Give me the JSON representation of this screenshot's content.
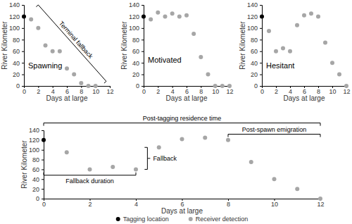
{
  "chart_data": [
    {
      "type": "scatter",
      "title": "Spawning",
      "x_label": "Days at large",
      "y_label": "River Kilometer",
      "xlim": [
        0,
        12
      ],
      "ylim": [
        0,
        140
      ],
      "xticks": [
        0,
        2,
        4,
        6,
        8,
        10,
        12
      ],
      "yticks": [
        0,
        20,
        40,
        60,
        80,
        100,
        120,
        140
      ],
      "series": [
        {
          "color": "#000000",
          "marker": "circle",
          "x": [
            0
          ],
          "values": [
            120
          ]
        },
        {
          "color": "#a6a6a6",
          "marker": "circle",
          "x": [
            1,
            2,
            3,
            4,
            5,
            6,
            7,
            8,
            9,
            10
          ],
          "values": [
            115,
            100,
            70,
            60,
            60,
            30,
            20,
            5,
            0,
            0
          ]
        }
      ],
      "annotations": [
        {
          "text": "Terminal fallback",
          "x": [
            2,
            11.5
          ],
          "y": [
            140,
            8
          ]
        }
      ]
    },
    {
      "type": "scatter",
      "title": "Motivated",
      "x_label": "Days at large",
      "y_label": "River Kilometer",
      "xlim": [
        0,
        12
      ],
      "ylim": [
        0,
        140
      ],
      "xticks": [
        0,
        2,
        4,
        6,
        8,
        10,
        12
      ],
      "yticks": [
        0,
        20,
        40,
        60,
        80,
        100,
        120,
        140
      ],
      "series": [
        {
          "color": "#000000",
          "marker": "circle",
          "x": [
            0
          ],
          "values": [
            120
          ]
        },
        {
          "color": "#a6a6a6",
          "marker": "circle",
          "x": [
            1,
            2,
            3,
            4,
            5,
            6,
            7,
            8,
            9,
            10,
            11,
            12
          ],
          "values": [
            115,
            127,
            120,
            125,
            120,
            122,
            90,
            50,
            20,
            0,
            0,
            0
          ]
        }
      ]
    },
    {
      "type": "scatter",
      "title": "Hesitant",
      "x_label": "Days at large",
      "y_label": "River Kilometer",
      "xlim": [
        0,
        12
      ],
      "ylim": [
        0,
        140
      ],
      "xticks": [
        0,
        2,
        4,
        6,
        8,
        10,
        12
      ],
      "yticks": [
        0,
        20,
        40,
        60,
        80,
        100,
        120,
        140
      ],
      "series": [
        {
          "color": "#000000",
          "marker": "circle",
          "x": [
            0
          ],
          "values": [
            120
          ]
        },
        {
          "color": "#a6a6a6",
          "marker": "circle",
          "x": [
            1,
            2,
            3,
            4,
            5,
            6,
            7,
            8,
            9,
            10,
            11,
            12
          ],
          "values": [
            95,
            60,
            65,
            60,
            105,
            122,
            125,
            120,
            75,
            40,
            20,
            0
          ]
        }
      ]
    },
    {
      "type": "scatter",
      "x_label": "Days at large",
      "y_label": "River Kilometer",
      "xlim": [
        0,
        12
      ],
      "ylim": [
        0,
        140
      ],
      "xticks": [
        0,
        2,
        4,
        6,
        8,
        10,
        12
      ],
      "yticks": [
        0,
        20,
        40,
        60,
        80,
        100,
        120,
        140
      ],
      "legend": "bottom",
      "series": [
        {
          "name": "Tagging location",
          "color": "#000000",
          "marker": "circle",
          "x": [
            0
          ],
          "values": [
            120
          ]
        },
        {
          "name": "Receiver detection",
          "color": "#a6a6a6",
          "marker": "circle",
          "x": [
            1,
            2,
            3,
            4,
            5,
            6,
            7,
            8,
            9,
            10,
            11,
            12
          ],
          "values": [
            95,
            60,
            65,
            60,
            105,
            122,
            125,
            120,
            75,
            40,
            20,
            0
          ]
        }
      ],
      "annotations": [
        {
          "text": "Post-tagging residence time",
          "x": [
            0,
            12
          ],
          "y": 155
        },
        {
          "text": "Post-spawn emigration",
          "x": [
            8,
            12
          ],
          "y": 132
        },
        {
          "text": "Fallback",
          "x": 4.5,
          "y": [
            60,
            105
          ]
        },
        {
          "text": "Fallback duration",
          "x": [
            0,
            4
          ],
          "y": 48
        }
      ]
    }
  ]
}
